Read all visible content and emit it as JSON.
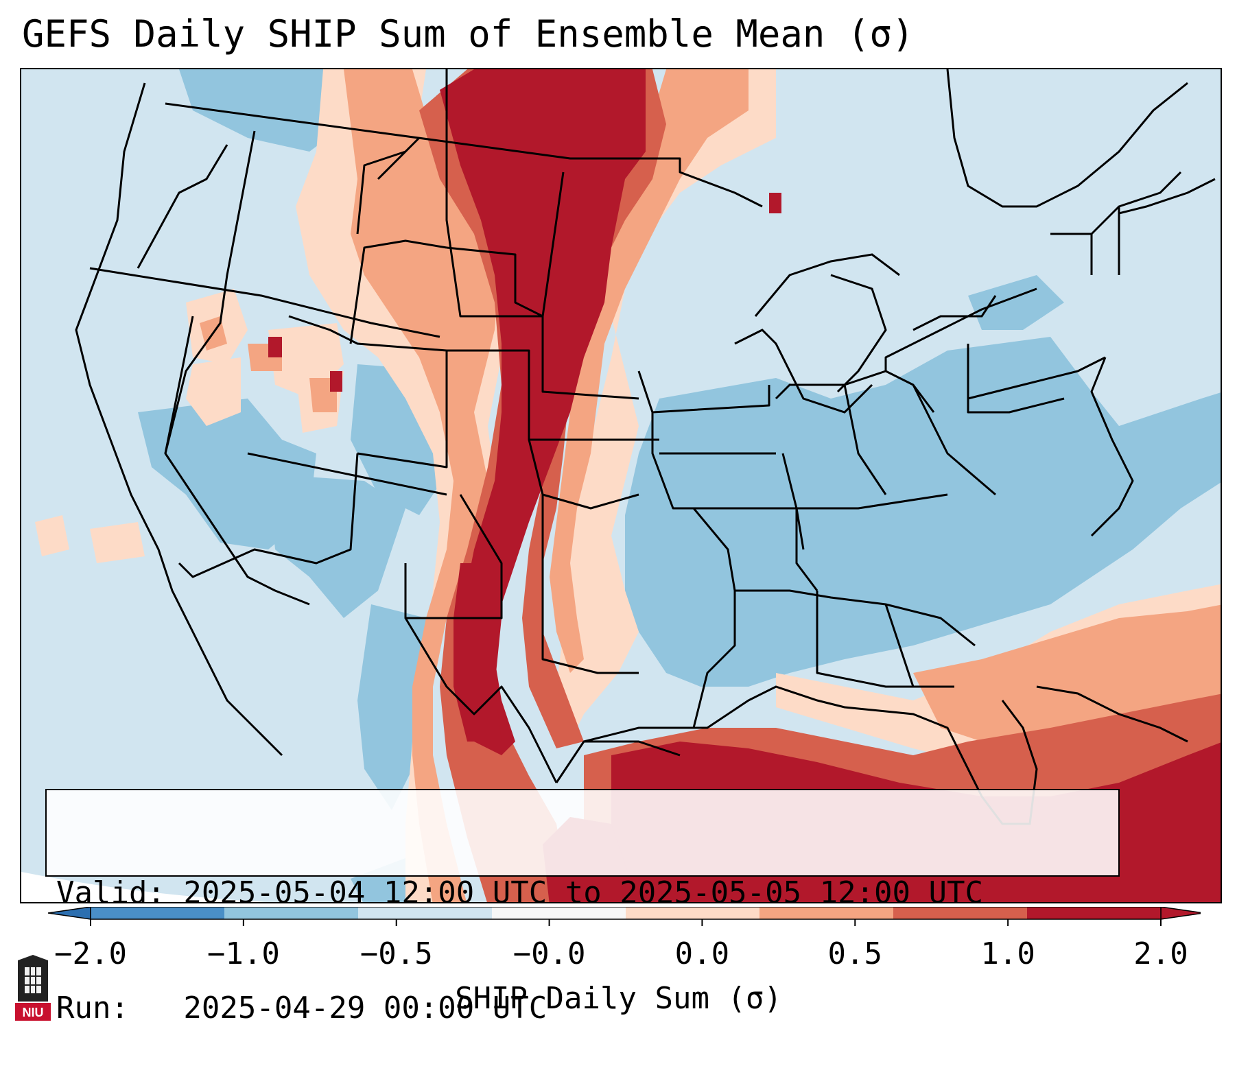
{
  "title": "GEFS Daily SHIP Sum of Ensemble Mean (σ)",
  "info": {
    "valid_line": "Valid: 2025-05-04 12:00 UTC to 2025-05-05 12:00 UTC",
    "run_line": "Run:   2025-04-29 00:00 UTC"
  },
  "colorbar": {
    "label": "SHIP Daily Sum (σ)",
    "ticks": [
      "−2.0",
      "−1.0",
      "−0.5",
      "−0.0",
      "0.0",
      "0.5",
      "1.0",
      "2.0"
    ],
    "colors": [
      "#4a8fc7",
      "#92c5de",
      "#d1e5f0",
      "#f7f7f7",
      "#fddbc7",
      "#f4a582",
      "#d6604d",
      "#b2182b"
    ],
    "extend": "both",
    "under_color": "#2c6fb0",
    "over_color": "#b2182b"
  },
  "logo": {
    "text": "NIU",
    "name": "niu-logo"
  },
  "map": {
    "projection": "conic",
    "region": "contiguous United States",
    "field": "SHIP daily sum anomaly",
    "max_region": "central Plains and western Gulf of Mexico",
    "min_region": "eastern United States"
  }
}
